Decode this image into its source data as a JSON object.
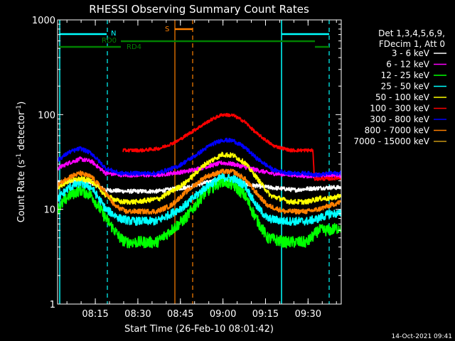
{
  "chart_data": {
    "type": "line",
    "title": "RHESSI Observing Summary Count Rates",
    "xlabel": "Start Time (26-Feb-10 08:01:42)",
    "ylabel_main": "Count Rate (s",
    "ylabel_sup": "-1",
    "ylabel_mid": " detector",
    "ylabel_sup2": "-1",
    "ylabel_end": ")",
    "yscale": "log",
    "ylim": [
      1,
      1000
    ],
    "xlim_minutes": [
      0,
      100
    ],
    "yticks": [
      {
        "value": 1,
        "label": "1"
      },
      {
        "value": 10,
        "label": "10"
      },
      {
        "value": 100,
        "label": "100"
      },
      {
        "value": 1000,
        "label": "1000"
      }
    ],
    "xticks": [
      {
        "value": 13.3,
        "label": "08:15"
      },
      {
        "value": 28.3,
        "label": "08:30"
      },
      {
        "value": 43.3,
        "label": "08:45"
      },
      {
        "value": 58.3,
        "label": "09:00"
      },
      {
        "value": 73.3,
        "label": "09:15"
      },
      {
        "value": 88.3,
        "label": "09:30"
      }
    ],
    "legend_header": [
      "Det 1,3,4,5,6,9,",
      "FDecim 1, Att 0"
    ],
    "series": [
      {
        "name": "3 - 6 keV",
        "color": "#ffffff",
        "points": [
          [
            0,
            19
          ],
          [
            3,
            19.5
          ],
          [
            8,
            20
          ],
          [
            12,
            19
          ],
          [
            17,
            16
          ],
          [
            24,
            15.5
          ],
          [
            35,
            15.5
          ],
          [
            45,
            17
          ],
          [
            52,
            19
          ],
          [
            58,
            21
          ],
          [
            62,
            20.5
          ],
          [
            68,
            18
          ],
          [
            75,
            17
          ],
          [
            84,
            16
          ],
          [
            88,
            16.5
          ],
          [
            96,
            17
          ],
          [
            100,
            17
          ]
        ]
      },
      {
        "name": "6 - 12 keV",
        "color": "#ff00ff",
        "points": [
          [
            0,
            27
          ],
          [
            4,
            31
          ],
          [
            8,
            34
          ],
          [
            12,
            32
          ],
          [
            17,
            24
          ],
          [
            24,
            23
          ],
          [
            35,
            23
          ],
          [
            45,
            25
          ],
          [
            52,
            28
          ],
          [
            58,
            31
          ],
          [
            62,
            30
          ],
          [
            68,
            27
          ],
          [
            75,
            24
          ],
          [
            84,
            23
          ],
          [
            88,
            22.5
          ],
          [
            96,
            23
          ],
          [
            100,
            22.5
          ]
        ]
      },
      {
        "name": "12 - 25 keV",
        "color": "#00ff00",
        "points": [
          [
            0,
            10
          ],
          [
            4,
            14
          ],
          [
            8,
            16
          ],
          [
            12,
            14
          ],
          [
            17,
            8
          ],
          [
            22,
            5
          ],
          [
            24,
            4.5
          ],
          [
            35,
            4.5
          ],
          [
            40,
            6
          ],
          [
            45,
            8
          ],
          [
            52,
            15
          ],
          [
            58,
            20
          ],
          [
            62,
            18
          ],
          [
            66,
            14
          ],
          [
            70,
            8
          ],
          [
            74,
            5
          ],
          [
            80,
            4.5
          ],
          [
            88,
            4.5
          ],
          [
            92,
            6
          ],
          [
            96,
            6
          ],
          [
            100,
            6.5
          ]
        ]
      },
      {
        "name": "25 - 50 keV",
        "color": "#00ffff",
        "points": [
          [
            0,
            13
          ],
          [
            4,
            17
          ],
          [
            8,
            19
          ],
          [
            12,
            17
          ],
          [
            17,
            10
          ],
          [
            22,
            8
          ],
          [
            26,
            7.5
          ],
          [
            35,
            7.5
          ],
          [
            40,
            9
          ],
          [
            45,
            11
          ],
          [
            52,
            17
          ],
          [
            58,
            22
          ],
          [
            62,
            21
          ],
          [
            66,
            18
          ],
          [
            70,
            11
          ],
          [
            74,
            8
          ],
          [
            80,
            7.5
          ],
          [
            88,
            7.5
          ],
          [
            92,
            8
          ],
          [
            96,
            9
          ],
          [
            100,
            9
          ]
        ]
      },
      {
        "name": "50 - 100 keV",
        "color": "#ffff00",
        "points": [
          [
            0,
            17
          ],
          [
            4,
            20
          ],
          [
            8,
            21
          ],
          [
            12,
            20
          ],
          [
            17,
            14
          ],
          [
            22,
            12
          ],
          [
            28,
            12
          ],
          [
            36,
            13
          ],
          [
            45,
            19
          ],
          [
            52,
            30
          ],
          [
            58,
            38
          ],
          [
            62,
            37
          ],
          [
            66,
            31
          ],
          [
            70,
            22
          ],
          [
            75,
            14
          ],
          [
            82,
            12
          ],
          [
            88,
            12
          ],
          [
            92,
            13
          ],
          [
            96,
            13
          ],
          [
            100,
            14
          ]
        ]
      },
      {
        "name": "100 - 300 keV",
        "color": "#ff0000",
        "points": [
          [
            23,
            42
          ],
          [
            30,
            42
          ],
          [
            36,
            44
          ],
          [
            42,
            52
          ],
          [
            48,
            68
          ],
          [
            54,
            88
          ],
          [
            58,
            100
          ],
          [
            62,
            98
          ],
          [
            66,
            84
          ],
          [
            70,
            64
          ],
          [
            76,
            47
          ],
          [
            82,
            42
          ],
          [
            90,
            42
          ],
          [
            90.5,
            21
          ],
          [
            92,
            21
          ],
          [
            96,
            21
          ],
          [
            100,
            21.5
          ]
        ]
      },
      {
        "name": "300 - 800 keV",
        "color": "#0000ff",
        "points": [
          [
            0,
            33
          ],
          [
            4,
            40
          ],
          [
            8,
            44
          ],
          [
            12,
            39
          ],
          [
            17,
            27
          ],
          [
            22,
            24
          ],
          [
            28,
            24
          ],
          [
            35,
            24
          ],
          [
            42,
            28
          ],
          [
            48,
            36
          ],
          [
            54,
            48
          ],
          [
            58,
            54
          ],
          [
            62,
            53
          ],
          [
            66,
            45
          ],
          [
            70,
            35
          ],
          [
            76,
            26
          ],
          [
            82,
            24
          ],
          [
            88,
            24
          ],
          [
            92,
            23
          ],
          [
            96,
            24
          ],
          [
            100,
            24
          ]
        ]
      },
      {
        "name": "800 - 7000 keV",
        "color": "#ff8000",
        "points": [
          [
            0,
            18
          ],
          [
            4,
            22
          ],
          [
            8,
            24
          ],
          [
            12,
            22
          ],
          [
            17,
            15
          ],
          [
            20,
            11
          ],
          [
            24,
            9.5
          ],
          [
            35,
            9.5
          ],
          [
            40,
            11
          ],
          [
            45,
            15
          ],
          [
            52,
            22
          ],
          [
            58,
            25
          ],
          [
            62,
            25
          ],
          [
            66,
            21
          ],
          [
            70,
            15
          ],
          [
            74,
            11
          ],
          [
            80,
            9.5
          ],
          [
            88,
            9.5
          ],
          [
            92,
            10
          ],
          [
            96,
            11
          ],
          [
            100,
            12
          ]
        ]
      },
      {
        "name": "7000 - 15000 keV",
        "color": "#c89614",
        "points": []
      }
    ],
    "annotations": [
      {
        "text": "N",
        "color": "#00ffff"
      },
      {
        "text": "RD0",
        "color": "#008000"
      },
      {
        "text": "RD4",
        "color": "#008000"
      },
      {
        "text": "S",
        "color": "#ff8000"
      }
    ]
  },
  "timestamp": "14-Oct-2021 09:41"
}
